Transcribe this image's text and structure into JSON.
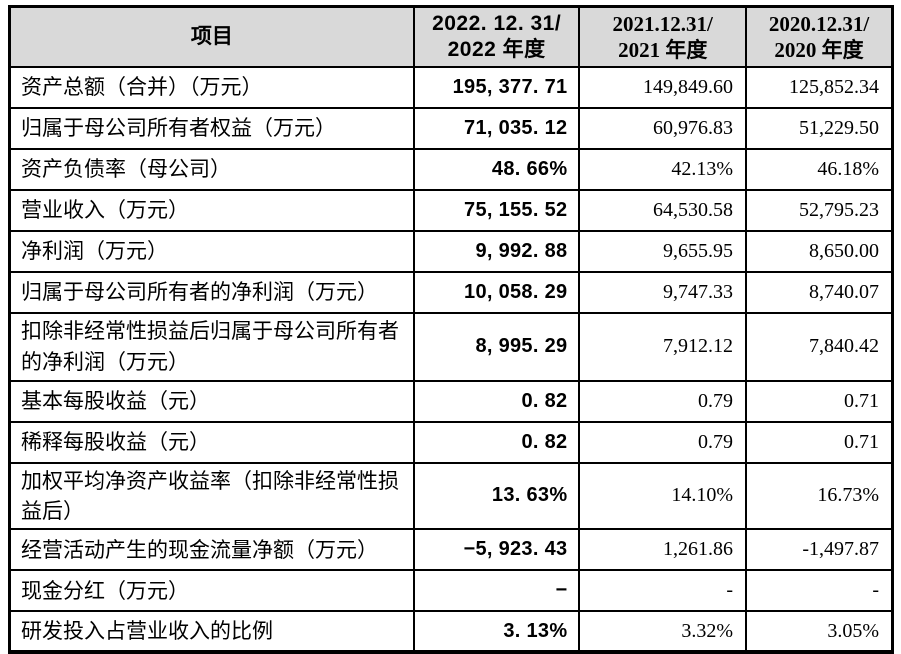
{
  "colors": {
    "header_bg": "#d9d9d9",
    "border": "#000000",
    "text": "#000000",
    "page_bg": "#ffffff"
  },
  "table": {
    "header": {
      "item_label": "项目",
      "col_2022": {
        "line1": "2022. 12. 31/",
        "line2": "2022 年度"
      },
      "col_2021": {
        "line1": "2021.12.31/",
        "line2": "2021 年度"
      },
      "col_2020": {
        "line1": "2020.12.31/",
        "line2": "2020 年度"
      }
    },
    "rows": [
      {
        "label": "资产总额（合并）（万元）",
        "v2022": "195, 377. 71",
        "v2021": "149,849.60",
        "v2020": "125,852.34"
      },
      {
        "label": "归属于母公司所有者权益（万元）",
        "v2022": "71, 035. 12",
        "v2021": "60,976.83",
        "v2020": "51,229.50"
      },
      {
        "label": "资产负债率（母公司）",
        "v2022": "48. 66%",
        "v2021": "42.13%",
        "v2020": "46.18%"
      },
      {
        "label": "营业收入（万元）",
        "v2022": "75, 155. 52",
        "v2021": "64,530.58",
        "v2020": "52,795.23"
      },
      {
        "label": "净利润（万元）",
        "v2022": "9, 992. 88",
        "v2021": "9,655.95",
        "v2020": "8,650.00"
      },
      {
        "label": "归属于母公司所有者的净利润（万元）",
        "v2022": "10, 058. 29",
        "v2021": "9,747.33",
        "v2020": "8,740.07"
      },
      {
        "label": "扣除非经常性损益后归属于母公司所有者的净利润（万元）",
        "v2022": "8, 995. 29",
        "v2021": "7,912.12",
        "v2020": "7,840.42"
      },
      {
        "label": "基本每股收益（元）",
        "v2022": "0. 82",
        "v2021": "0.79",
        "v2020": "0.71"
      },
      {
        "label": "稀释每股收益（元）",
        "v2022": "0. 82",
        "v2021": "0.79",
        "v2020": "0.71"
      },
      {
        "label": "加权平均净资产收益率（扣除非经常性损益后）",
        "v2022": "13. 63%",
        "v2021": "14.10%",
        "v2020": "16.73%"
      },
      {
        "label": "经营活动产生的现金流量净额（万元）",
        "v2022": "−5, 923. 43",
        "v2021": "1,261.86",
        "v2020": "-1,497.87"
      },
      {
        "label": "现金分红（万元）",
        "v2022": "−",
        "v2021": "-",
        "v2020": "-"
      },
      {
        "label": "研发投入占营业收入的比例",
        "v2022": "3. 13%",
        "v2021": "3.32%",
        "v2020": "3.05%"
      }
    ]
  }
}
